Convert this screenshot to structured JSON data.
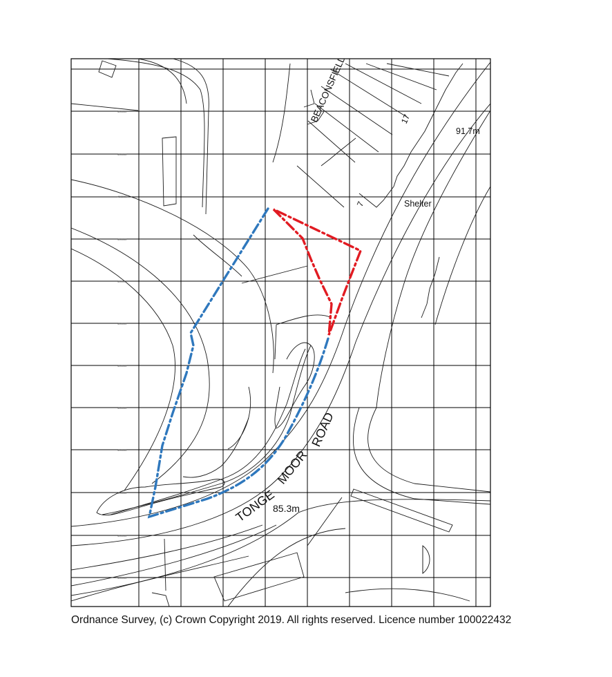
{
  "map": {
    "labels": {
      "street_top": "BEACONSFIELD TERRACE",
      "house_17": "17",
      "house_7": "7",
      "shelter": "Shelter",
      "spot_height_top": "91.7m",
      "spot_height_bottom": "85.3m",
      "road_tonge": "TONGE",
      "road_moor": "MOOR",
      "road_road": "ROAD"
    },
    "boundaries": [
      {
        "name": "red site boundary",
        "color": "#e11b22",
        "style": "dash-dot"
      },
      {
        "name": "blue land boundary",
        "color": "#2f78bd",
        "style": "dash-dot"
      }
    ],
    "grid": "on"
  },
  "footer": {
    "copyright": "Ordnance Survey, (c) Crown Copyright 2019. All rights reserved. Licence number 100022432"
  }
}
